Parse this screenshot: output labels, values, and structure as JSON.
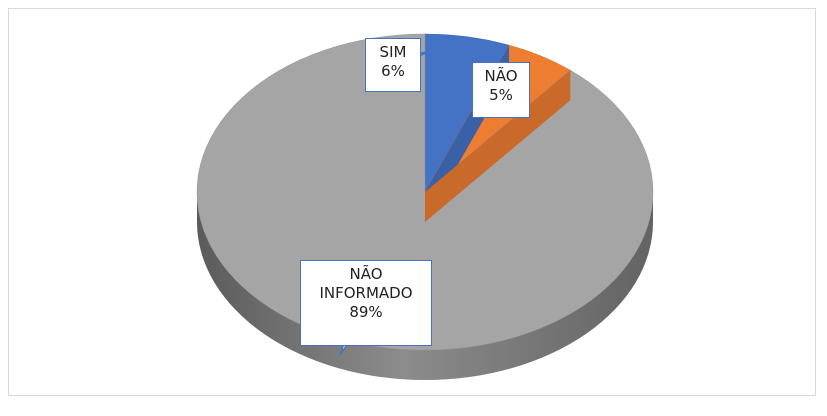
{
  "chart_data": {
    "type": "pie3d",
    "categories": [
      "SIM",
      "NÃO",
      "NÃO INFORMADO"
    ],
    "values": [
      6,
      5,
      89
    ],
    "value_labels": [
      "6%",
      "5%",
      "89%"
    ],
    "colors": [
      "#4472c4",
      "#ed7d31",
      "#a5a5a5"
    ]
  }
}
